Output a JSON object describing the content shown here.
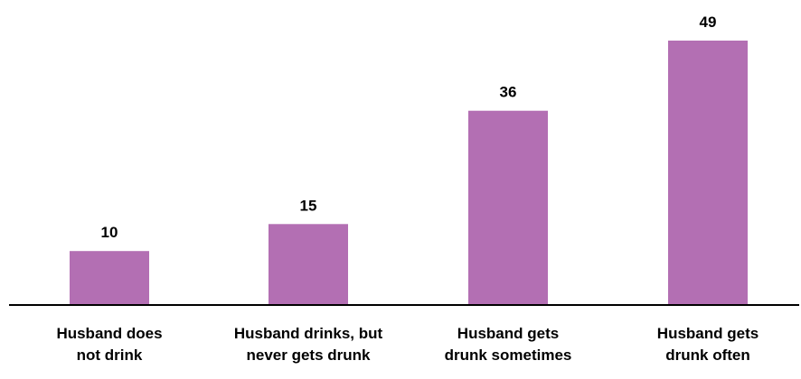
{
  "chart_data": {
    "type": "bar",
    "categories": [
      [
        "Husband does",
        "not drink"
      ],
      [
        "Husband drinks, but",
        "never gets drunk"
      ],
      [
        "Husband gets",
        "drunk sometimes"
      ],
      [
        "Husband gets",
        "drunk often"
      ]
    ],
    "values": [
      10,
      15,
      36,
      49
    ],
    "data_labels": [
      "10",
      "15",
      "36",
      "49"
    ],
    "title": "",
    "xlabel": "",
    "ylabel": "",
    "ylim": [
      0,
      55
    ],
    "grid": false,
    "legend": "none",
    "bar_color": "#b36fb3",
    "axis_color": "#000000"
  }
}
